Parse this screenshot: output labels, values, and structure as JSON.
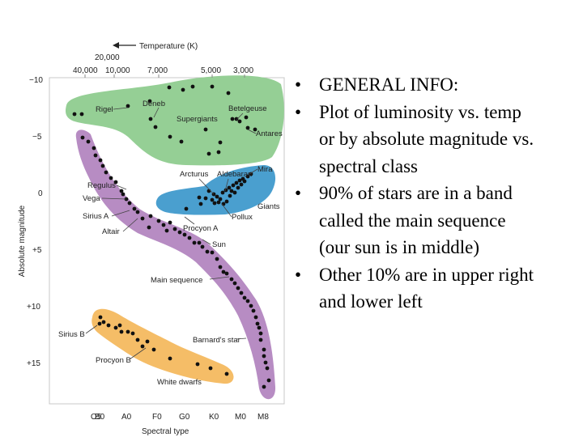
{
  "diagram": {
    "temperature_axis": {
      "title": "Temperature (K)",
      "ticks": [
        "40,000",
        "20,000",
        "10,000",
        "7,000",
        "5,000",
        "3,000"
      ]
    },
    "magnitude_axis": {
      "title": "Absolute magnitude",
      "ticks": [
        "−10",
        "−5",
        "0",
        "+5",
        "+10",
        "+15"
      ]
    },
    "spectral_axis": {
      "title": "Spectral type",
      "ticks": [
        "O5",
        "B0",
        "A0",
        "F0",
        "G0",
        "K0",
        "M0",
        "M8"
      ]
    },
    "regions": {
      "supergiants": "Supergiants",
      "giants": "Giants",
      "main_sequence": "Main sequence",
      "white_dwarfs": "White dwarfs"
    },
    "stars": {
      "rigel": "Rigel",
      "deneb": "Deneb",
      "betelgeuse": "Betelgeuse",
      "antares": "Antares",
      "mira": "Mira",
      "aldebaran": "Aldebaran",
      "arcturus": "Arcturus",
      "pollux": "Pollux",
      "regulus": "Regulus",
      "vega": "Vega",
      "sirius_a": "Sirius A",
      "altair": "Altair",
      "procyon_a": "Procyon A",
      "sun": "Sun",
      "barnards_star": "Barnard's star",
      "sirius_b": "Sirius B",
      "procyon_b": "Procyon B"
    },
    "colors": {
      "supergiants": "#95cf95",
      "giants": "#4a9fcf",
      "main_sequence": "#b78cc3",
      "white_dwarfs": "#f5bd67",
      "dots": "#111111"
    }
  },
  "notes": {
    "bullets": [
      "GENERAL INFO:",
      "Plot of luminosity vs. temp or by absolute magnitude vs. spectral class",
      "90% of stars are in a band called the main sequence (our sun is in middle)",
      "Other 10% are in upper right and lower left"
    ],
    "bullet_glyph": "•"
  }
}
